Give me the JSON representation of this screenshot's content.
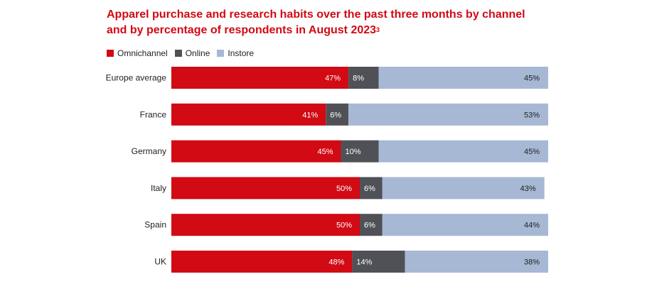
{
  "title": {
    "line1": "Apparel purchase and research habits over the past three months by channel",
    "line2": "and by percentage of respondents in August 2023",
    "footnote": "3"
  },
  "colors": {
    "omnichannel": "#d10a14",
    "online": "#4f5157",
    "instore": "#a6b8d4",
    "title": "#d10a14"
  },
  "legend": [
    {
      "label": "Omnichannel",
      "color": "#d10a14"
    },
    {
      "label": "Online",
      "color": "#4f5157"
    },
    {
      "label": "Instore",
      "color": "#a6b8d4"
    }
  ],
  "chart_data": {
    "type": "bar",
    "orientation": "horizontal",
    "stacked": true,
    "categories": [
      "Europe average",
      "France",
      "Germany",
      "Italy",
      "Spain",
      "UK"
    ],
    "series": [
      {
        "name": "Omnichannel",
        "values": [
          47,
          41,
          45,
          50,
          50,
          48
        ]
      },
      {
        "name": "Online",
        "values": [
          8,
          6,
          10,
          6,
          6,
          14
        ]
      },
      {
        "name": "Instore",
        "values": [
          45,
          53,
          45,
          43,
          44,
          38
        ]
      }
    ],
    "grid": false,
    "legend_position": "top-left"
  }
}
